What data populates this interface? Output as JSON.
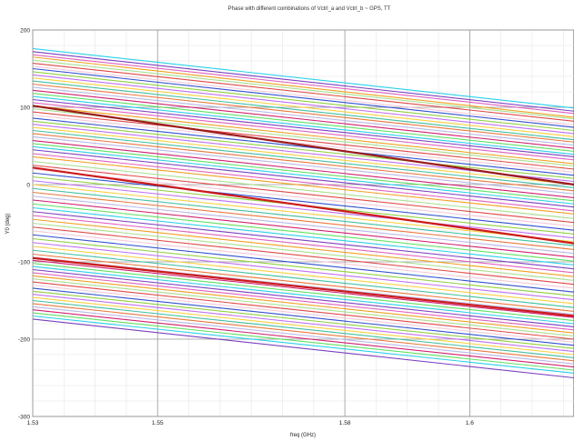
{
  "chart_data": {
    "type": "line",
    "title": "Phase with different combinations of Vctrl_a and Vctrl_b ~ GPS, TT",
    "xlabel": "freq (GHz)",
    "ylabel": "Y0 (deg)",
    "xlim": [
      1.53,
      1.6167
    ],
    "ylim": [
      -300,
      200
    ],
    "x_ticks": [
      1.53,
      1.55,
      1.58,
      1.6
    ],
    "x_tick_labels": [
      "1.53",
      "1.55",
      "1.58",
      "1.6"
    ],
    "y_ticks": [
      200,
      100,
      0,
      -100,
      -200,
      -300
    ],
    "y_tick_labels": [
      "200",
      "100",
      "0",
      "-100",
      "-200",
      "-300"
    ],
    "grid": true,
    "legend": "none",
    "x": [
      1.53,
      1.6167
    ],
    "series_values": [
      [
        176,
        99
      ],
      [
        172,
        95
      ],
      [
        168,
        92
      ],
      [
        165,
        87
      ],
      [
        161,
        85
      ],
      [
        157,
        82
      ],
      [
        153,
        77
      ],
      [
        150,
        74
      ],
      [
        146,
        70
      ],
      [
        142,
        66
      ],
      [
        138,
        62
      ],
      [
        134,
        58
      ],
      [
        130,
        55
      ],
      [
        126,
        51
      ],
      [
        122,
        47
      ],
      [
        118,
        43
      ],
      [
        114,
        39
      ],
      [
        110,
        36
      ],
      [
        106,
        32
      ],
      [
        102,
        27
      ],
      [
        98,
        24
      ],
      [
        94,
        20
      ],
      [
        90,
        16
      ],
      [
        86,
        12
      ],
      [
        82,
        8
      ],
      [
        78,
        4
      ],
      [
        74,
        0
      ],
      [
        70,
        -4
      ],
      [
        66,
        -8
      ],
      [
        62,
        -12
      ],
      [
        57,
        -17
      ],
      [
        53,
        -21
      ],
      [
        49,
        -25
      ],
      [
        45,
        -29
      ],
      [
        40,
        -34
      ],
      [
        36,
        -38
      ],
      [
        30,
        -44
      ],
      [
        25,
        -49
      ],
      [
        20,
        -54
      ],
      [
        15,
        -59
      ],
      [
        10,
        -64
      ],
      [
        5,
        -69
      ],
      [
        0,
        -74
      ],
      [
        -5,
        -79
      ],
      [
        -10,
        -84
      ],
      [
        -15,
        -89
      ],
      [
        -20,
        -94
      ],
      [
        -25,
        -99
      ],
      [
        -30,
        -104
      ],
      [
        -35,
        -109
      ],
      [
        -40,
        -114
      ],
      [
        -45,
        -119
      ],
      [
        -50,
        -124
      ],
      [
        -55,
        -129
      ],
      [
        -60,
        -134
      ],
      [
        -65,
        -139
      ],
      [
        -70,
        -144
      ],
      [
        -75,
        -149
      ],
      [
        -80,
        -154
      ],
      [
        -85,
        -159
      ],
      [
        -90,
        -164
      ],
      [
        -94,
        -168
      ],
      [
        -98,
        -172
      ],
      [
        -102,
        -176
      ],
      [
        -106,
        -180
      ],
      [
        -110,
        -184
      ],
      [
        -114,
        -188
      ],
      [
        -118,
        -192
      ],
      [
        -122,
        -196
      ],
      [
        -126,
        -200
      ],
      [
        -130,
        -204
      ],
      [
        -134,
        -208
      ],
      [
        -138,
        -212
      ],
      [
        -142,
        -216
      ],
      [
        -146,
        -220
      ],
      [
        -150,
        -224
      ],
      [
        -154,
        -228
      ],
      [
        -158,
        -232
      ],
      [
        -162,
        -236
      ],
      [
        -166,
        -240
      ],
      [
        -170,
        -244
      ],
      [
        -174,
        -250
      ]
    ],
    "highlight_series": [
      {
        "values": [
          102,
          0
        ],
        "color": "#9b1b1b"
      },
      {
        "values": [
          22,
          -76
        ],
        "color": "#cc1a1a"
      },
      {
        "values": [
          -95,
          -170
        ],
        "color": "#cc1a1a"
      }
    ],
    "palette": [
      "#29d0e8",
      "#7a3fc0",
      "#e060c0",
      "#f0a020",
      "#a8e090",
      "#e04848",
      "#f4c8d8",
      "#3050d0",
      "#90d040",
      "#c070f0",
      "#f8d040",
      "#40c0a0",
      "#e8783c",
      "#b8b8e8",
      "#d02070",
      "#60e060"
    ]
  }
}
